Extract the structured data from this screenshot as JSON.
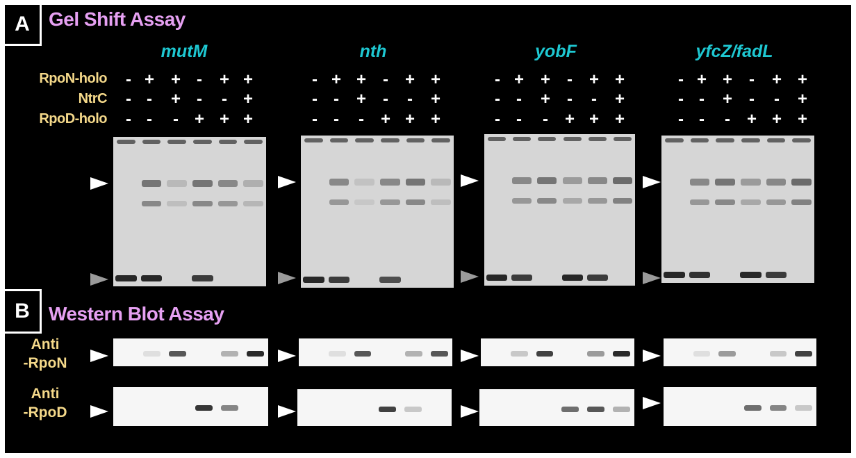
{
  "panel_a": {
    "tag": "A",
    "title": "Gel Shift Assay",
    "genes": [
      "mutM",
      "nth",
      "yobF",
      "yfcZ/fadL"
    ],
    "conditions": [
      {
        "label": "RpoN-holo",
        "signs": [
          "-",
          "+",
          "+",
          "-",
          "+",
          "+"
        ]
      },
      {
        "label": "NtrC",
        "signs": [
          "-",
          "-",
          "+",
          "-",
          "-",
          "+"
        ]
      },
      {
        "label": "RpoD-holo",
        "signs": [
          "-",
          "-",
          "-",
          "+",
          "+",
          "+"
        ]
      }
    ]
  },
  "panel_b": {
    "tag": "B",
    "title": "Western Blot Assay",
    "rows": [
      {
        "label_line1": "Anti",
        "label_line2": "-RpoN"
      },
      {
        "label_line1": "Anti",
        "label_line2": "-RpoD"
      }
    ]
  },
  "colors": {
    "title": "#e6a0f2",
    "gene": "#1ec8d2",
    "labels": "#f5d98a",
    "background": "#000000"
  }
}
